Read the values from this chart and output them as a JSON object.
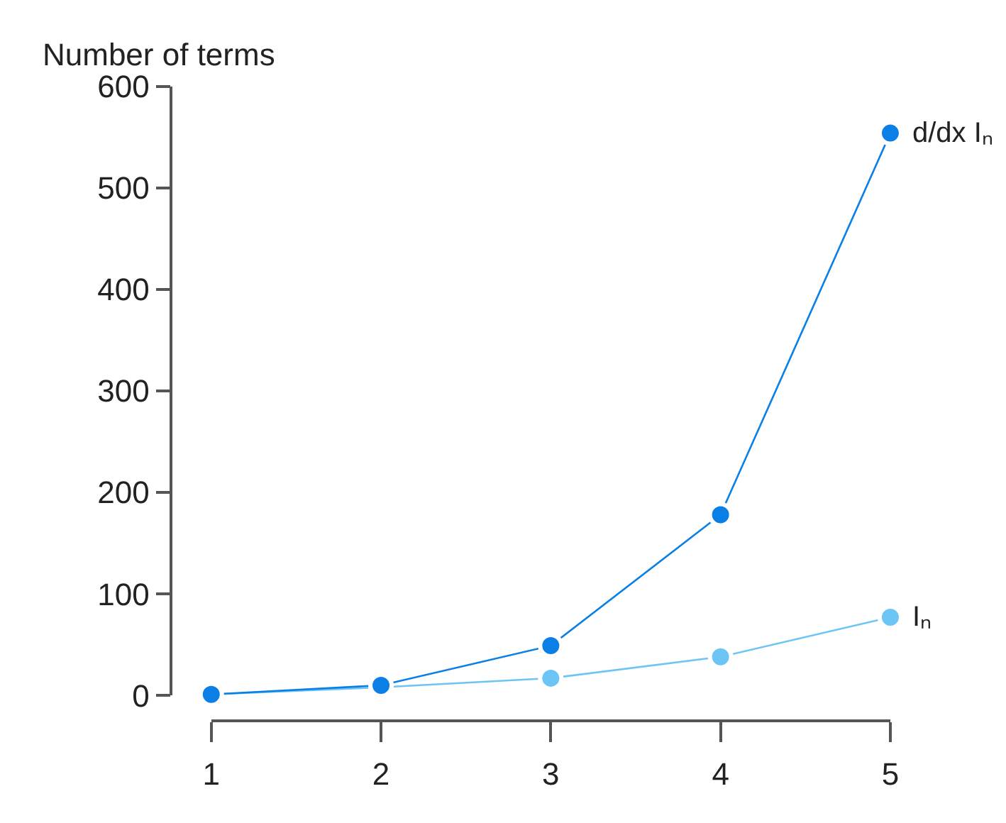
{
  "chart_data": {
    "type": "line",
    "ylabel": "Number of terms",
    "x": [
      1,
      2,
      3,
      4,
      5
    ],
    "series": [
      {
        "name": "d/dx Iₙ",
        "color": "#0a7fe6",
        "values": [
          1,
          10,
          49,
          178,
          554
        ]
      },
      {
        "name": "Iₙ",
        "color": "#6cc5f4",
        "values": [
          1,
          8,
          17,
          38,
          77
        ]
      }
    ],
    "xlim": [
      1,
      5
    ],
    "xticks": [
      1,
      2,
      3,
      4,
      5
    ],
    "ylim": [
      0,
      600
    ],
    "yticks": [
      0,
      100,
      200,
      300,
      400,
      500,
      600
    ],
    "grid": false,
    "legend": false,
    "marker": "circle",
    "line_style": "solid"
  }
}
